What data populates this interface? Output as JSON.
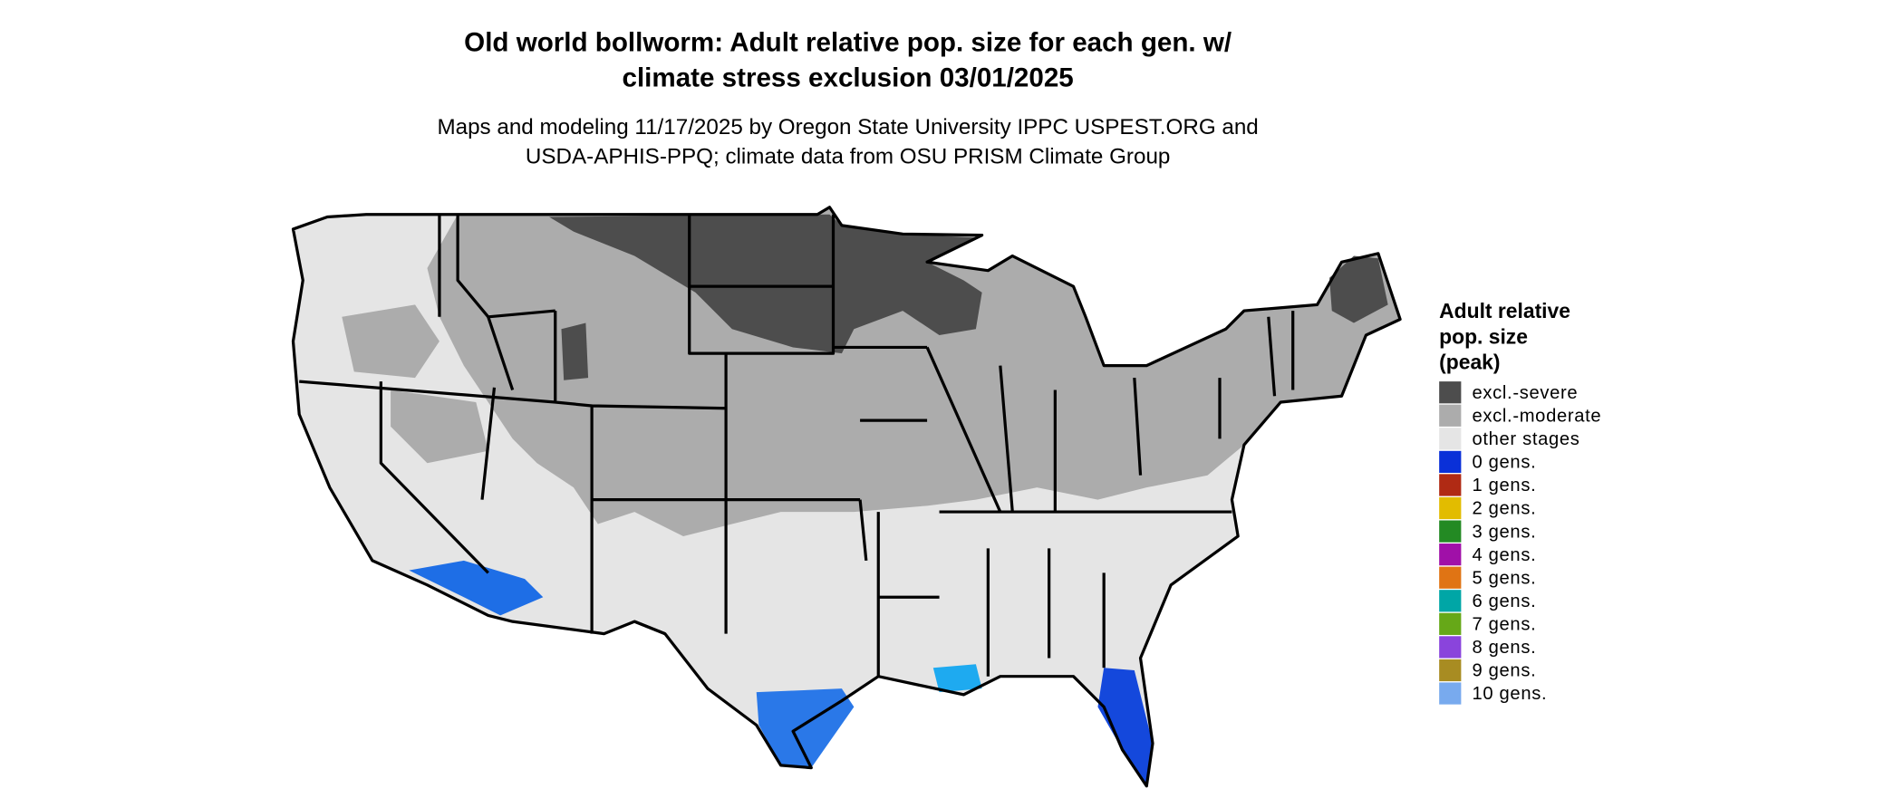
{
  "header": {
    "title": [
      "Old world bollworm: Adult relative pop. size for each gen. w/",
      "climate stress exclusion 03/01/2025"
    ],
    "subtitle": [
      "Maps and modeling 11/17/2025 by Oregon State University IPPC USPEST.ORG and",
      "USDA-APHIS-PPQ; climate data from OSU PRISM Climate Group"
    ]
  },
  "legend": {
    "title": [
      "Adult relative",
      "pop. size",
      "(peak)"
    ],
    "items": [
      {
        "label": "excl.-severe",
        "color": "#4d4d4d"
      },
      {
        "label": "excl.-moderate",
        "color": "#acacac"
      },
      {
        "label": "other stages",
        "color": "#e5e5e5"
      },
      {
        "label": "0 gens.",
        "color": "#0a30d8"
      },
      {
        "label": "1 gens.",
        "color": "#b02a14"
      },
      {
        "label": "2 gens.",
        "color": "#e2bc00"
      },
      {
        "label": "3 gens.",
        "color": "#238a23"
      },
      {
        "label": "4 gens.",
        "color": "#a010a8"
      },
      {
        "label": "5 gens.",
        "color": "#e07414"
      },
      {
        "label": "6 gens.",
        "color": "#00a6a6"
      },
      {
        "label": "7 gens.",
        "color": "#66a818"
      },
      {
        "label": "8 gens.",
        "color": "#8a44dc"
      },
      {
        "label": "9 gens.",
        "color": "#a88c22"
      },
      {
        "label": "10 gens.",
        "color": "#78aaee"
      }
    ]
  }
}
